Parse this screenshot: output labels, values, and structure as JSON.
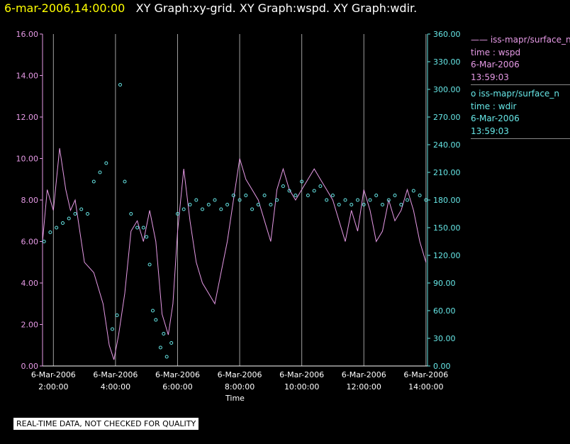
{
  "header": {
    "timestamp": "6-mar-2006,14:00:00",
    "title": "XY Graph:xy-grid.  XY Graph:wspd.  XY Graph:wdir."
  },
  "legend": [
    {
      "symbol": "——",
      "label": "iss-mapr/surface_n",
      "line2": "time : wspd",
      "line3": "6-Mar-2006",
      "line4": "13:59:03",
      "color": "#e69ae6"
    },
    {
      "symbol": "o",
      "label": "iss-mapr/surface_n",
      "line2": "time : wdir",
      "line3": "6-Mar-2006",
      "line4": "13:59:03",
      "color": "#66e6e6"
    }
  ],
  "notice": "REAL-TIME DATA, NOT CHECKED FOR QUALITY",
  "chart_data": {
    "type": "line",
    "xlabel": "Time",
    "x_ticks": [
      {
        "date": "6-Mar-2006",
        "time": "2:00:00"
      },
      {
        "date": "6-Mar-2006",
        "time": "4:00:00"
      },
      {
        "date": "6-Mar-2006",
        "time": "6:00:00"
      },
      {
        "date": "6-Mar-2006",
        "time": "8:00:00"
      },
      {
        "date": "6-Mar-2006",
        "time": "10:00:00"
      },
      {
        "date": "6-Mar-2006",
        "time": "12:00:00"
      },
      {
        "date": "6-Mar-2006",
        "time": "14:00:00"
      }
    ],
    "xlim_hours": [
      1.65,
      14.05
    ],
    "y_left": {
      "lim": [
        0,
        16
      ],
      "ticks": [
        "0.00",
        "2.00",
        "4.00",
        "6.00",
        "8.00",
        "10.00",
        "12.00",
        "14.00",
        "16.00"
      ],
      "color": "#e69ae6"
    },
    "y_right": {
      "lim": [
        0,
        360
      ],
      "ticks": [
        "0.00",
        "30.00",
        "60.00",
        "90.00",
        "120.00",
        "150.00",
        "180.00",
        "210.00",
        "240.00",
        "270.00",
        "300.00",
        "330.00",
        "360.00"
      ],
      "color": "#66e6e6"
    },
    "grid": "vertical",
    "series": [
      {
        "axis": "left",
        "style": "line",
        "color": "#e69ae6",
        "x": [
          1.65,
          1.8,
          2.0,
          2.2,
          2.4,
          2.55,
          2.7,
          3.0,
          3.3,
          3.6,
          3.8,
          3.95,
          4.1,
          4.3,
          4.5,
          4.7,
          4.9,
          5.1,
          5.3,
          5.5,
          5.7,
          5.85,
          6.0,
          6.2,
          6.4,
          6.6,
          6.8,
          7.0,
          7.2,
          7.4,
          7.6,
          7.8,
          8.0,
          8.2,
          8.4,
          8.6,
          8.8,
          9.0,
          9.2,
          9.4,
          9.6,
          9.8,
          10.0,
          10.2,
          10.4,
          10.6,
          10.8,
          11.0,
          11.2,
          11.4,
          11.6,
          11.8,
          12.0,
          12.2,
          12.4,
          12.6,
          12.8,
          13.0,
          13.2,
          13.4,
          13.6,
          13.8,
          14.0
        ],
        "y": [
          6.0,
          8.5,
          7.5,
          10.5,
          8.5,
          7.5,
          8.0,
          5.0,
          4.5,
          3.0,
          1.0,
          0.3,
          1.5,
          3.5,
          6.5,
          7.0,
          6.0,
          7.5,
          6.0,
          2.5,
          1.5,
          3.0,
          6.5,
          9.5,
          7.0,
          5.0,
          4.0,
          3.5,
          3.0,
          4.5,
          6.0,
          8.0,
          10.0,
          9.0,
          8.5,
          8.0,
          7.0,
          6.0,
          8.5,
          9.5,
          8.5,
          8.0,
          8.5,
          9.0,
          9.5,
          9.0,
          8.5,
          8.0,
          7.0,
          6.0,
          7.5,
          6.5,
          8.5,
          7.5,
          6.0,
          6.5,
          8.0,
          7.0,
          7.5,
          8.5,
          7.5,
          6.0,
          5.0
        ]
      },
      {
        "axis": "right",
        "style": "scatter",
        "color": "#66e6e6",
        "x": [
          1.7,
          1.9,
          2.1,
          2.3,
          2.5,
          2.7,
          2.9,
          3.1,
          3.3,
          3.5,
          3.7,
          3.9,
          4.05,
          4.15,
          4.3,
          4.5,
          4.7,
          4.9,
          5.0,
          5.1,
          5.2,
          5.3,
          5.45,
          5.55,
          5.65,
          5.8,
          6.0,
          6.2,
          6.4,
          6.6,
          6.8,
          7.0,
          7.2,
          7.4,
          7.6,
          7.8,
          8.0,
          8.2,
          8.4,
          8.6,
          8.8,
          9.0,
          9.2,
          9.4,
          9.6,
          9.8,
          10.0,
          10.2,
          10.4,
          10.6,
          10.8,
          11.0,
          11.2,
          11.4,
          11.6,
          11.8,
          12.0,
          12.2,
          12.4,
          12.6,
          12.8,
          13.0,
          13.2,
          13.4,
          13.6,
          13.8,
          14.0
        ],
        "y": [
          135,
          145,
          150,
          155,
          160,
          165,
          170,
          165,
          200,
          210,
          220,
          40,
          55,
          305,
          200,
          165,
          150,
          150,
          140,
          110,
          60,
          50,
          20,
          35,
          10,
          25,
          165,
          170,
          175,
          180,
          170,
          175,
          180,
          170,
          175,
          185,
          180,
          185,
          170,
          175,
          185,
          175,
          180,
          195,
          190,
          185,
          200,
          185,
          190,
          195,
          180,
          185,
          175,
          180,
          175,
          180,
          175,
          180,
          185,
          175,
          180,
          185,
          175,
          180,
          190,
          185,
          180
        ]
      }
    ]
  }
}
